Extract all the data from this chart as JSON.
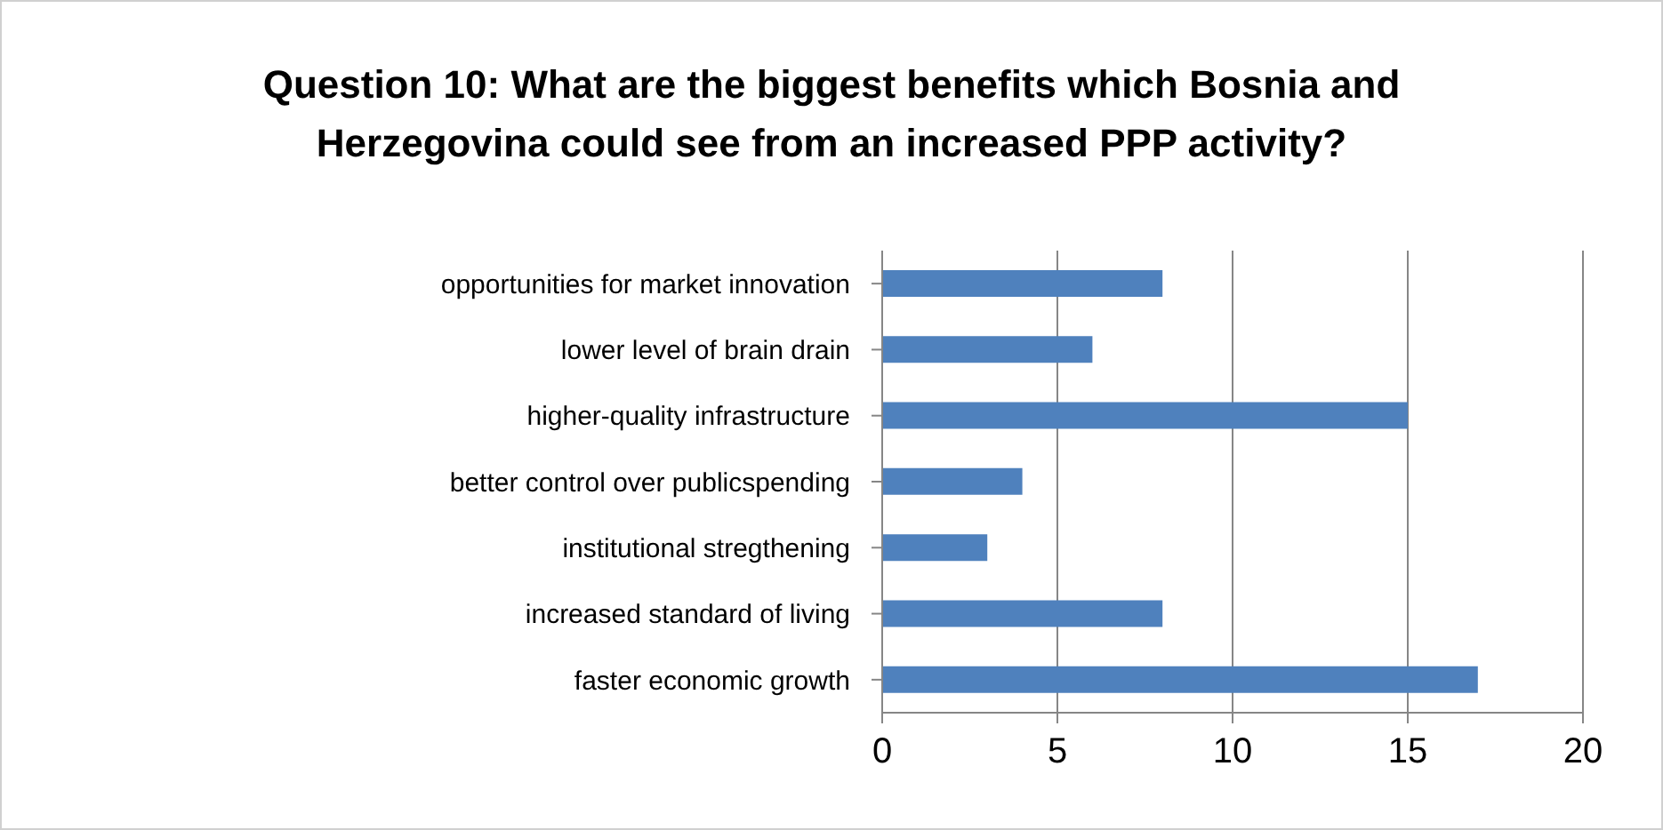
{
  "chart_data": {
    "type": "bar",
    "orientation": "horizontal",
    "title": "Question 10: What are the biggest benefits which Bosnia and Herzegovina could see from an increased PPP activity?",
    "categories": [
      "opportunities for market innovation",
      "lower level of brain drain",
      "higher-quality infrastructure",
      "better control over publicspending",
      "institutional stregthening",
      "increased standard of living",
      "faster economic growth"
    ],
    "values": [
      8,
      6,
      15,
      4,
      3,
      8,
      17
    ],
    "color": "#4f81bd",
    "xlim": [
      0,
      20
    ],
    "xticks": [
      0,
      5,
      10,
      15,
      20
    ],
    "grid": "x"
  }
}
